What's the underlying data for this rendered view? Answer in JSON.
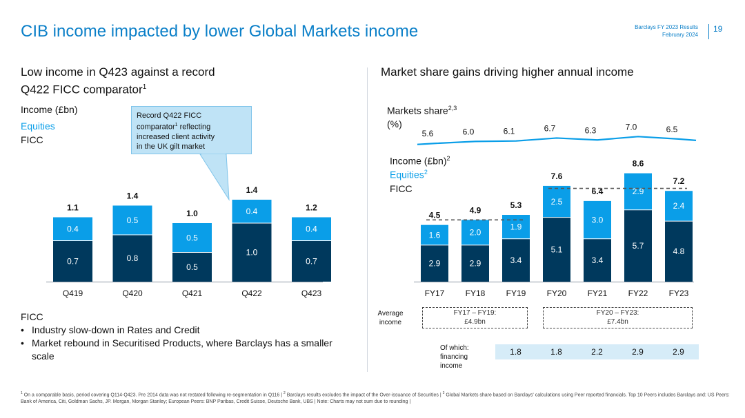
{
  "header": {
    "title": "CIB income impacted by lower Global Markets income",
    "doc_line1": "Barclays FY 2023 Results",
    "doc_line2": "February 2024",
    "page_number": "19"
  },
  "left_panel": {
    "title_line1": "Low income in Q423 against a record",
    "title_line2": "Q422 FICC comparator",
    "title_sup": "1",
    "legend_income": "Income (£bn)",
    "legend_equities": "Equities",
    "legend_ficc": "FICC",
    "callout_line1": "Record Q422 FICC",
    "callout_line2a": "comparator",
    "callout_sup": "1",
    "callout_line2b": " reflecting",
    "callout_line3": "increased client activity",
    "callout_line4": "in the UK gilt market",
    "bullets_heading": "FICC",
    "bullets": [
      "Industry slow-down in Rates and Credit",
      "Market rebound in Securitised Products, where Barclays has a smaller scale"
    ]
  },
  "right_panel": {
    "title": "Market share gains driving higher annual income",
    "share_label_line1": "Markets share",
    "share_label_sup": "2,3",
    "share_label_line2": "(%)",
    "legend_income": "Income (£bn)",
    "legend_income_sup": "2",
    "legend_equities": "Equities",
    "legend_equities_sup": "2",
    "legend_ficc": "FICC",
    "avg_label_line1": "Average",
    "avg_label_line2": "income",
    "avg1_line1": "FY17 – FY19:",
    "avg1_line2": "£4.9bn",
    "avg2_line1": "FY20 – FY23:",
    "avg2_line2": "£7.4bn",
    "fin_label_line1": "Of which:",
    "fin_label_line2": "financing",
    "fin_label_line3": "income",
    "financing_values": [
      "1.8",
      "1.8",
      "2.2",
      "2.9",
      "2.9"
    ]
  },
  "footnote": {
    "s1": "1",
    "t1": " On a comparable basis, period covering Q114-Q423. Pre 2014 data was not restated following re-segmentation in Q116 | ",
    "s2": "2",
    "t2": " Barclays results excludes the impact of the Over-issuance of Securities | ",
    "s3": "3",
    "t3": " Global Markets share based on Barclays' calculations using Peer reported financials. Top 10 Peers includes Barclays and: US Peers: Bank of America, Citi, Goldman Sachs, JP. Morgan, Morgan Stanley; European Peers: BNP Paribas, Credit Suisse, Deutsche Bank, UBS | Note: Charts may not sum due to rounding |"
  },
  "colors": {
    "equities": "#0a9ee8",
    "ficc": "#00395d",
    "accent": "#0a7fc8",
    "financing_bg": "#d6ecf8"
  },
  "chart_data": [
    {
      "type": "bar",
      "stacked": true,
      "categories": [
        "Q419",
        "Q420",
        "Q421",
        "Q422",
        "Q423"
      ],
      "series": [
        {
          "name": "FICC",
          "values": [
            0.7,
            0.8,
            0.5,
            1.0,
            0.7
          ]
        },
        {
          "name": "Equities",
          "values": [
            0.4,
            0.5,
            0.5,
            0.4,
            0.4
          ]
        }
      ],
      "totals": [
        1.1,
        1.4,
        1.0,
        1.4,
        1.2
      ],
      "ylabel": "Income (£bn)"
    },
    {
      "type": "bar",
      "stacked": true,
      "categories": [
        "FY17",
        "FY18",
        "FY19",
        "FY20",
        "FY21",
        "FY22",
        "FY23"
      ],
      "series": [
        {
          "name": "FICC",
          "values": [
            2.9,
            2.9,
            3.4,
            5.1,
            3.4,
            5.7,
            4.8
          ]
        },
        {
          "name": "Equities",
          "values": [
            1.6,
            2.0,
            1.9,
            2.5,
            3.0,
            2.9,
            2.4
          ]
        }
      ],
      "totals": [
        4.5,
        4.9,
        5.3,
        7.6,
        6.4,
        8.6,
        7.2
      ],
      "averages": [
        {
          "range": "FY17 – FY19",
          "value": 4.9
        },
        {
          "range": "FY20 – FY23",
          "value": 7.4
        }
      ],
      "ylabel": "Income (£bn)"
    },
    {
      "type": "line",
      "x": [
        "FY17",
        "FY18",
        "FY19",
        "FY20",
        "FY21",
        "FY22",
        "FY23"
      ],
      "series": [
        {
          "name": "Markets share",
          "values": [
            5.6,
            6.0,
            6.1,
            6.7,
            6.3,
            7.0,
            6.5
          ]
        }
      ],
      "ylabel": "Markets share (%)"
    }
  ]
}
